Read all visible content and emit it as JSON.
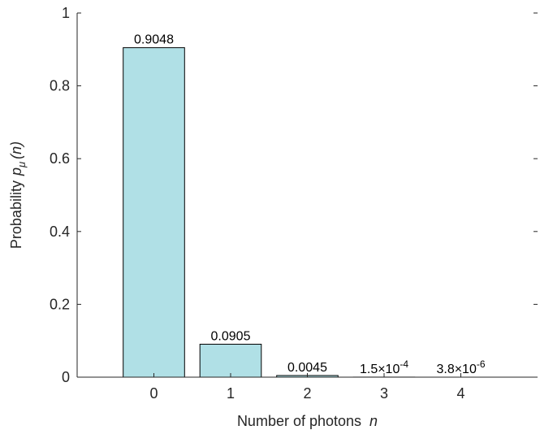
{
  "chart_data": {
    "type": "bar",
    "categories": [
      "0",
      "1",
      "2",
      "3",
      "4"
    ],
    "values": [
      0.9048,
      0.0905,
      0.0045,
      0.00015,
      3.8e-06
    ],
    "data_labels": [
      {
        "base": "0.9048",
        "exp": ""
      },
      {
        "base": "0.0905",
        "exp": ""
      },
      {
        "base": "0.0045",
        "exp": ""
      },
      {
        "base": "1.5×10",
        "exp": "-4"
      },
      {
        "base": "3.8×10",
        "exp": "-6"
      }
    ],
    "xlabel": {
      "text": "Number of photons",
      "var": "n"
    },
    "ylabel": {
      "prefix": "Probability",
      "var": "p",
      "sub": "μ",
      "arg": "(n)"
    },
    "ylim": [
      0,
      1
    ],
    "xlim": [
      -1,
      5
    ],
    "yticks": [
      0,
      0.2,
      0.4,
      0.6,
      0.8,
      1
    ],
    "ytick_labels": [
      "0",
      "0.2",
      "0.4",
      "0.6",
      "0.8",
      "1"
    ],
    "grid": false,
    "bar_color": "#b0e0e6",
    "edge_color": "#000000"
  }
}
